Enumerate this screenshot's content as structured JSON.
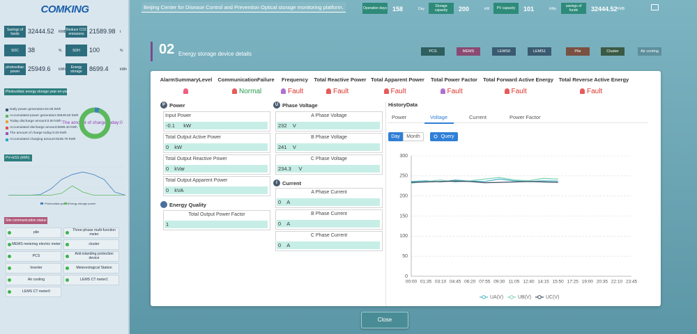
{
  "sidebar": {
    "logo": "COMKING",
    "stats": [
      {
        "label": "Savings of funds",
        "value": 32444.52,
        "unit": "RMB"
      },
      {
        "label": "Reduce CO2 emissions",
        "value": 21589.98,
        "unit": "t"
      },
      {
        "label": "SOC",
        "value": 38,
        "unit": "%"
      },
      {
        "label": "SOH",
        "value": 100,
        "unit": "%"
      },
      {
        "label": "photovoltaic power",
        "value": 25949.6,
        "unit": "kWh"
      },
      {
        "label": "Energy storage",
        "value": 8699.4,
        "unit": "kWh"
      }
    ],
    "energy_title": "Photovoltaic energy storage year-on-year",
    "energy_items": [
      {
        "text": "Daily power generation:64.05 kWh",
        "color": "#3c5a7a"
      },
      {
        "text": "Accumulated power generation:25949.60 kWh",
        "color": "#5cb85c"
      },
      {
        "text": "Today discharge amount:0.00 kWh",
        "color": "#e8a33c"
      },
      {
        "text": "Accumulated discharge amount:8699.40 kWh",
        "color": "#d9534f"
      },
      {
        "text": "The amount of charge today:0.00 kWh",
        "color": "#8e5ab5"
      },
      {
        "text": "Accumulated charging amount:9238.70 kWh",
        "color": "#2fa4c9"
      }
    ],
    "donut_label": "The amount of charge today:0",
    "pv_chart": {
      "title": "PV+ESS (kWh)",
      "ylim": [
        0,
        50
      ],
      "series": [
        {
          "name": "Photovoltaic power",
          "color": "#3f7fbf",
          "values": [
            5,
            5,
            5,
            6,
            15,
            30,
            38,
            42,
            38,
            30,
            10,
            5
          ]
        },
        {
          "name": "Energy storage power",
          "color": "#5cb85c",
          "values": [
            5,
            5,
            5,
            5,
            5,
            8,
            20,
            10,
            5,
            5,
            5,
            5
          ]
        }
      ]
    },
    "site_title": "Site communication status",
    "sites": [
      "pile",
      "Three-phase multi-function meter",
      "MEMS metering electric meter",
      "cluster",
      "PCS",
      "Anti-islanding protection device",
      "Inverter",
      "Meteorological Station",
      "Air cooling",
      "LEMS CT meter1",
      "LEMS CT meter0"
    ]
  },
  "header": {
    "title": "Beijing Center for Disease Control and Prevention Optical storage monitoring platform.",
    "stats": [
      {
        "label": "Operation days",
        "value": 158,
        "unit": "Day"
      },
      {
        "label": "Storage capacity",
        "value": 200,
        "unit": "kW"
      },
      {
        "label": "PV capacity",
        "value": 101,
        "unit": "kWp"
      },
      {
        "label": "savings of funds",
        "value": 32444.52,
        "unit": "RMB"
      }
    ]
  },
  "section": {
    "number": "02",
    "title": "Energy storage device details",
    "tabs": [
      {
        "label": "PCS",
        "color": "#2e5e5e"
      },
      {
        "label": "MEMS",
        "color": "#8a4a72"
      },
      {
        "label": "LEMS0",
        "color": "#3a5a70"
      },
      {
        "label": "LEMS1",
        "color": "#3a5a70"
      },
      {
        "label": "Pile",
        "color": "#7a5040"
      },
      {
        "label": "Cluster",
        "color": "#3a5a44"
      },
      {
        "label": "Air cooling",
        "color": "#5d8f9c"
      }
    ]
  },
  "status": [
    {
      "label": "AlarmSummaryLevel",
      "color": "#f06080"
    },
    {
      "label": "CommunicationFailure",
      "state": "Normal",
      "color": "#e85a5a"
    },
    {
      "label": "Frequency",
      "state": "Fault",
      "color": "#b070d0"
    },
    {
      "label": "Total Reactive Power",
      "state": "Fault",
      "color": "#e85a5a"
    },
    {
      "label": "Total Apparent Power",
      "state": "Fault",
      "color": "#e85a5a"
    },
    {
      "label": "Total Power Factor",
      "state": "Fault",
      "color": "#b070d0"
    },
    {
      "label": "Total Forward Active Energy",
      "state": "Fault",
      "color": "#e85a5a"
    },
    {
      "label": "Total Reverse Active Energy",
      "state": "Fault",
      "color": "#e85a5a"
    }
  ],
  "power": {
    "icon": "P",
    "title": "Power",
    "items": [
      {
        "label": "Input Power",
        "value": -0.1,
        "unit": "kW"
      },
      {
        "label": "Total Output Active Power",
        "value": 0,
        "unit": "kW"
      },
      {
        "label": "Total Output Reactive Power",
        "value": 0,
        "unit": "kVar"
      },
      {
        "label": "Total Output Apparent Power",
        "value": 0,
        "unit": "kVA"
      }
    ]
  },
  "energy_quality": {
    "title": "Energy Quality",
    "items": [
      {
        "label": "Total Output Power Factor",
        "value": 1
      }
    ]
  },
  "voltage": {
    "icon": "U",
    "title": "Phase Voltage",
    "items": [
      {
        "label": "A Phase Voltage",
        "value": 232,
        "unit": "V"
      },
      {
        "label": "B Phase Voltage",
        "value": 241,
        "unit": "V"
      },
      {
        "label": "C Phase Voltage",
        "value": 234.3,
        "unit": "V"
      }
    ]
  },
  "current": {
    "icon": "I",
    "title": "Current",
    "items": [
      {
        "label": "A Phase Current",
        "value": 0,
        "unit": "A"
      },
      {
        "label": "B Phase Current",
        "value": 0,
        "unit": "A"
      },
      {
        "label": "C Phase Current",
        "value": 0,
        "unit": "A"
      }
    ]
  },
  "history": {
    "title": "HistoryData",
    "tabs": [
      "Power",
      "Voltage",
      "Current",
      "Power Factor"
    ],
    "active_tab": 1,
    "day": "Day",
    "month": "Month",
    "query": "Query"
  },
  "chart_data": {
    "type": "line",
    "categories": [
      "00:00",
      "01:35",
      "03:10",
      "04:45",
      "06:20",
      "07:55",
      "09:30",
      "11:05",
      "12:40",
      "14:15",
      "15:50",
      "17:25",
      "19:00",
      "20:35",
      "22:10",
      "23:45"
    ],
    "series": [
      {
        "name": "UA(V)",
        "color": "#4fb3c7",
        "values": [
          236,
          238,
          235,
          240,
          237,
          236,
          242,
          238,
          236,
          238,
          237,
          null,
          null,
          null,
          null,
          null
        ]
      },
      {
        "name": "UB(V)",
        "color": "#7fd3b8",
        "values": [
          232,
          236,
          240,
          235,
          238,
          242,
          246,
          240,
          238,
          244,
          242,
          null,
          null,
          null,
          null,
          null
        ]
      },
      {
        "name": "UC(V)",
        "color": "#3d4a5c",
        "values": [
          234,
          235,
          236,
          237,
          236,
          233,
          234,
          235,
          236,
          235,
          234,
          null,
          null,
          null,
          null,
          null
        ]
      }
    ],
    "ylim": [
      0,
      300
    ],
    "yticks": [
      0,
      50,
      100,
      150,
      200,
      250,
      300
    ],
    "grid": true
  },
  "close": "Close"
}
